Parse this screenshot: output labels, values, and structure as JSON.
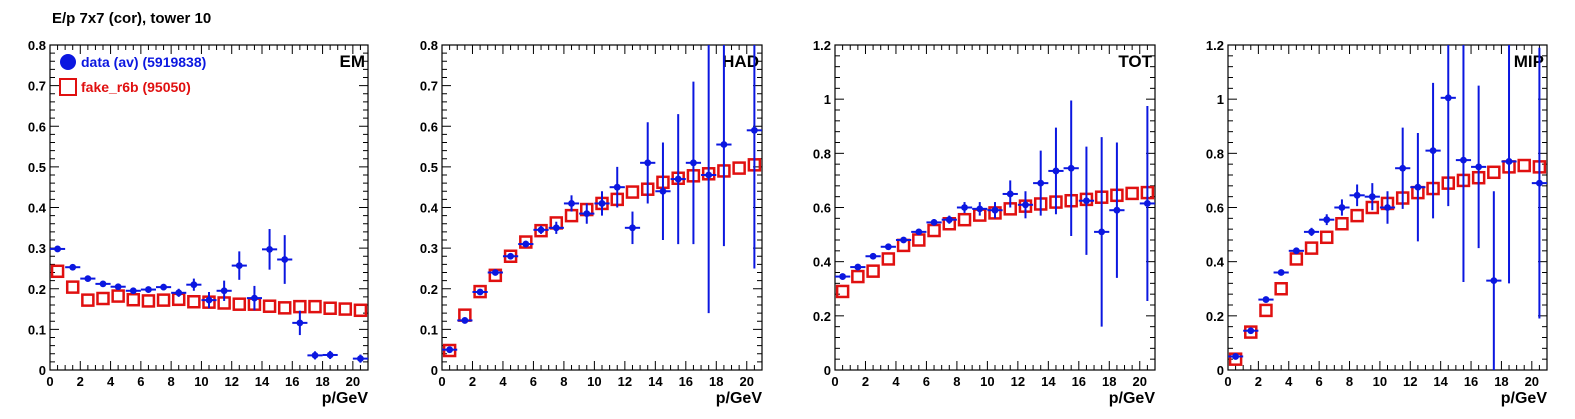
{
  "figure_title": "E/p 7x7 (cor), tower 10",
  "colors": {
    "data": "#0b17e0",
    "fake": "#e01010"
  },
  "legend": [
    {
      "label": "data (av) (5919838)",
      "marker": "filled-circle",
      "color": "#0b17e0"
    },
    {
      "label": "fake_r6b (95050)",
      "marker": "open-square",
      "color": "#e01010"
    }
  ],
  "chart_data": [
    {
      "type": "scatter",
      "panel_label": "EM",
      "xlabel": "p/GeV",
      "xlim": [
        0,
        21
      ],
      "ylim": [
        0,
        0.8
      ],
      "xticks": [
        0,
        2,
        4,
        6,
        8,
        10,
        12,
        14,
        16,
        18,
        20
      ],
      "yticks": [
        0,
        0.1,
        0.2,
        0.3,
        0.4,
        0.5,
        0.6,
        0.7,
        0.8
      ],
      "ytick_labels": [
        "0",
        "0.1",
        "0.2",
        "0.3",
        "0.4",
        "0.5",
        "0.6",
        "0.7",
        "0.8"
      ],
      "legend_position": "top-left",
      "series": [
        {
          "name": "data (av) (5919838)",
          "marker": "filled-circle",
          "x": [
            0.5,
            1.5,
            2.5,
            3.5,
            4.5,
            5.5,
            6.5,
            7.5,
            8.5,
            9.5,
            10.5,
            11.5,
            12.5,
            13.5,
            14.5,
            15.5,
            16.5,
            17.5,
            18.5,
            20.5
          ],
          "y": [
            0.298,
            0.253,
            0.225,
            0.212,
            0.205,
            0.195,
            0.198,
            0.204,
            0.19,
            0.21,
            0.172,
            0.195,
            0.257,
            0.177,
            0.297,
            0.272,
            0.116,
            0.036,
            0.037,
            0.028
          ],
          "yerr": [
            0.005,
            0.005,
            0.005,
            0.005,
            0.005,
            0.006,
            0.006,
            0.008,
            0.01,
            0.015,
            0.02,
            0.025,
            0.035,
            0.03,
            0.05,
            0.06,
            0.03,
            0.01,
            0.01,
            0.01
          ]
        },
        {
          "name": "fake_r6b (95050)",
          "marker": "open-square",
          "x": [
            0.5,
            1.5,
            2.5,
            3.5,
            4.5,
            5.5,
            6.5,
            7.5,
            8.5,
            9.5,
            10.5,
            11.5,
            12.5,
            13.5,
            14.5,
            15.5,
            16.5,
            17.5,
            18.5,
            19.5,
            20.5
          ],
          "y": [
            0.243,
            0.204,
            0.172,
            0.176,
            0.182,
            0.173,
            0.17,
            0.172,
            0.174,
            0.168,
            0.167,
            0.165,
            0.162,
            0.162,
            0.157,
            0.153,
            0.156,
            0.156,
            0.152,
            0.15,
            0.147
          ]
        }
      ]
    },
    {
      "type": "scatter",
      "panel_label": "HAD",
      "xlabel": "p/GeV",
      "xlim": [
        0,
        21
      ],
      "ylim": [
        0,
        0.8
      ],
      "xticks": [
        0,
        2,
        4,
        6,
        8,
        10,
        12,
        14,
        16,
        18,
        20
      ],
      "yticks": [
        0,
        0.1,
        0.2,
        0.3,
        0.4,
        0.5,
        0.6,
        0.7,
        0.8
      ],
      "ytick_labels": [
        "0",
        "0.1",
        "0.2",
        "0.3",
        "0.4",
        "0.5",
        "0.6",
        "0.7",
        "0.8"
      ],
      "series": [
        {
          "name": "data (av) (5919838)",
          "marker": "filled-circle",
          "x": [
            0.5,
            1.5,
            2.5,
            3.5,
            4.5,
            5.5,
            6.5,
            7.5,
            8.5,
            9.5,
            10.5,
            11.5,
            12.5,
            13.5,
            14.5,
            15.5,
            16.5,
            17.5,
            18.5,
            20.5
          ],
          "y": [
            0.05,
            0.122,
            0.192,
            0.24,
            0.28,
            0.31,
            0.345,
            0.35,
            0.41,
            0.385,
            0.41,
            0.45,
            0.35,
            0.51,
            0.44,
            0.47,
            0.51,
            0.48,
            0.555,
            0.59
          ],
          "yerr": [
            0.004,
            0.004,
            0.005,
            0.006,
            0.007,
            0.008,
            0.01,
            0.015,
            0.02,
            0.025,
            0.03,
            0.05,
            0.04,
            0.1,
            0.12,
            0.16,
            0.2,
            0.34,
            0.25,
            0.34
          ]
        },
        {
          "name": "fake_r6b (95050)",
          "marker": "open-square",
          "x": [
            0.5,
            1.5,
            2.5,
            3.5,
            4.5,
            5.5,
            6.5,
            7.5,
            8.5,
            9.5,
            10.5,
            11.5,
            12.5,
            13.5,
            14.5,
            15.5,
            16.5,
            17.5,
            18.5,
            19.5,
            20.5
          ],
          "y": [
            0.048,
            0.135,
            0.193,
            0.233,
            0.28,
            0.315,
            0.343,
            0.362,
            0.38,
            0.395,
            0.41,
            0.42,
            0.438,
            0.445,
            0.462,
            0.472,
            0.478,
            0.483,
            0.49,
            0.497,
            0.505
          ]
        }
      ]
    },
    {
      "type": "scatter",
      "panel_label": "TOT",
      "xlabel": "p/GeV",
      "xlim": [
        0,
        21
      ],
      "ylim": [
        0,
        1.2
      ],
      "xticks": [
        0,
        2,
        4,
        6,
        8,
        10,
        12,
        14,
        16,
        18,
        20
      ],
      "yticks": [
        0,
        0.2,
        0.4,
        0.6,
        0.8,
        1,
        1.2
      ],
      "ytick_labels": [
        "0",
        "0.2",
        "0.4",
        "0.6",
        "0.8",
        "1",
        "1.2"
      ],
      "series": [
        {
          "name": "data (av) (5919838)",
          "marker": "filled-circle",
          "x": [
            0.5,
            1.5,
            2.5,
            3.5,
            4.5,
            5.5,
            6.5,
            7.5,
            8.5,
            9.5,
            10.5,
            11.5,
            12.5,
            13.5,
            14.5,
            15.5,
            16.5,
            17.5,
            18.5,
            20.5
          ],
          "y": [
            0.345,
            0.38,
            0.42,
            0.455,
            0.48,
            0.51,
            0.545,
            0.555,
            0.6,
            0.595,
            0.59,
            0.65,
            0.61,
            0.69,
            0.735,
            0.745,
            0.625,
            0.51,
            0.59,
            0.615
          ],
          "yerr": [
            0.005,
            0.005,
            0.006,
            0.007,
            0.008,
            0.01,
            0.012,
            0.015,
            0.02,
            0.025,
            0.03,
            0.05,
            0.05,
            0.12,
            0.16,
            0.25,
            0.2,
            0.35,
            0.25,
            0.36
          ]
        },
        {
          "name": "fake_r6b (95050)",
          "marker": "open-square",
          "x": [
            0.5,
            1.5,
            2.5,
            3.5,
            4.5,
            5.5,
            6.5,
            7.5,
            8.5,
            9.5,
            10.5,
            11.5,
            12.5,
            13.5,
            14.5,
            15.5,
            16.5,
            17.5,
            18.5,
            19.5,
            20.5
          ],
          "y": [
            0.29,
            0.345,
            0.365,
            0.41,
            0.46,
            0.48,
            0.515,
            0.54,
            0.555,
            0.572,
            0.58,
            0.595,
            0.605,
            0.613,
            0.62,
            0.625,
            0.63,
            0.638,
            0.645,
            0.652,
            0.655
          ]
        }
      ]
    },
    {
      "type": "scatter",
      "panel_label": "MIP",
      "xlabel": "p/GeV",
      "xlim": [
        0,
        21
      ],
      "ylim": [
        0,
        1.2
      ],
      "xticks": [
        0,
        2,
        4,
        6,
        8,
        10,
        12,
        14,
        16,
        18,
        20
      ],
      "yticks": [
        0,
        0.2,
        0.4,
        0.6,
        0.8,
        1,
        1.2
      ],
      "ytick_labels": [
        "0",
        "0.2",
        "0.4",
        "0.6",
        "0.8",
        "1",
        "1.2"
      ],
      "series": [
        {
          "name": "data (av) (5919838)",
          "marker": "filled-circle",
          "x": [
            0.5,
            1.5,
            2.5,
            3.5,
            4.5,
            5.5,
            6.5,
            7.5,
            8.5,
            9.5,
            10.5,
            11.5,
            12.5,
            13.5,
            14.5,
            15.5,
            16.5,
            17.5,
            18.5,
            20.5
          ],
          "y": [
            0.05,
            0.145,
            0.26,
            0.36,
            0.44,
            0.51,
            0.555,
            0.6,
            0.645,
            0.64,
            0.6,
            0.745,
            0.675,
            0.81,
            1.005,
            0.775,
            0.75,
            0.33,
            0.77,
            0.69
          ],
          "yerr": [
            0.005,
            0.006,
            0.008,
            0.01,
            0.012,
            0.015,
            0.02,
            0.03,
            0.04,
            0.05,
            0.06,
            0.15,
            0.2,
            0.25,
            0.4,
            0.45,
            0.3,
            0.33,
            0.45,
            0.5
          ]
        },
        {
          "name": "fake_r6b (95050)",
          "marker": "open-square",
          "x": [
            0.5,
            1.5,
            2.5,
            3.5,
            4.5,
            5.5,
            6.5,
            7.5,
            8.5,
            9.5,
            10.5,
            11.5,
            12.5,
            13.5,
            14.5,
            15.5,
            16.5,
            17.5,
            18.5,
            19.5,
            20.5
          ],
          "y": [
            0.04,
            0.14,
            0.22,
            0.3,
            0.41,
            0.45,
            0.49,
            0.54,
            0.57,
            0.6,
            0.615,
            0.635,
            0.655,
            0.67,
            0.69,
            0.7,
            0.71,
            0.73,
            0.75,
            0.755,
            0.75
          ]
        }
      ]
    }
  ]
}
